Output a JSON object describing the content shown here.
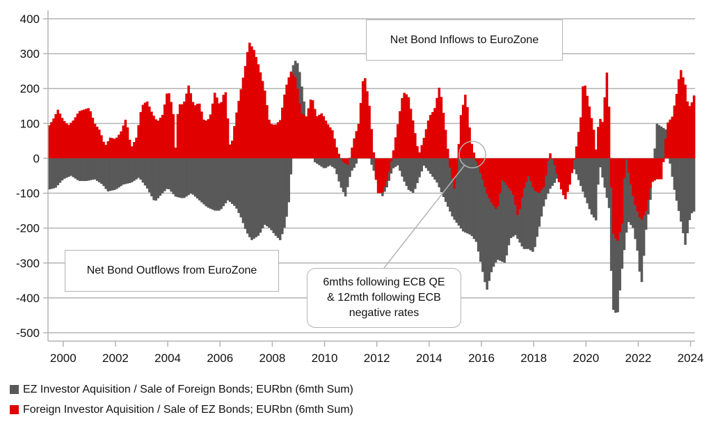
{
  "chart_data": {
    "type": "bar",
    "title": "",
    "xlabel": "",
    "ylabel": "",
    "ylim": [
      -500,
      400
    ],
    "yticks": [
      400,
      300,
      200,
      100,
      0,
      -100,
      -200,
      -300,
      -400,
      -500
    ],
    "xlim": [
      1999.42,
      2024.17
    ],
    "xticks": [
      2000,
      2002,
      2004,
      2006,
      2008,
      2010,
      2012,
      2014,
      2016,
      2018,
      2020,
      2022,
      2024
    ],
    "grid": "horizontal",
    "legend_position": "bottom-left",
    "frequency": "monthly",
    "start": 1999.42,
    "series": [
      {
        "name": "EZ Investor Aquisition / Sale of Foreign Bonds; EURbn (6mth Sum)",
        "color": "#595959",
        "anchors": [
          [
            1999.42,
            -90
          ],
          [
            1999.7,
            -85
          ],
          [
            2000.0,
            -60
          ],
          [
            2000.3,
            -50
          ],
          [
            2000.6,
            -65
          ],
          [
            2000.9,
            -65
          ],
          [
            2001.2,
            -60
          ],
          [
            2001.5,
            -75
          ],
          [
            2001.7,
            -95
          ],
          [
            2002.0,
            -90
          ],
          [
            2002.3,
            -75
          ],
          [
            2002.6,
            -70
          ],
          [
            2002.9,
            -55
          ],
          [
            2003.2,
            -85
          ],
          [
            2003.5,
            -125
          ],
          [
            2003.8,
            -100
          ],
          [
            2004.0,
            -85
          ],
          [
            2004.3,
            -110
          ],
          [
            2004.6,
            -115
          ],
          [
            2004.9,
            -100
          ],
          [
            2005.2,
            -120
          ],
          [
            2005.5,
            -140
          ],
          [
            2005.8,
            -150
          ],
          [
            2006.0,
            -150
          ],
          [
            2006.3,
            -120
          ],
          [
            2006.6,
            -140
          ],
          [
            2006.8,
            -170
          ],
          [
            2007.0,
            -210
          ],
          [
            2007.2,
            -235
          ],
          [
            2007.5,
            -220
          ],
          [
            2007.7,
            -190
          ],
          [
            2007.9,
            -200
          ],
          [
            2008.1,
            -220
          ],
          [
            2008.3,
            -235
          ],
          [
            2008.5,
            -190
          ],
          [
            2008.7,
            -90
          ],
          [
            2008.8,
            286
          ],
          [
            2009.0,
            270
          ],
          [
            2009.2,
            170
          ],
          [
            2009.4,
            50
          ],
          [
            2009.6,
            -10
          ],
          [
            2009.8,
            -20
          ],
          [
            2010.0,
            -30
          ],
          [
            2010.2,
            -20
          ],
          [
            2010.4,
            -30
          ],
          [
            2010.6,
            -80
          ],
          [
            2010.8,
            -110
          ],
          [
            2011.0,
            -40
          ],
          [
            2011.2,
            -20
          ],
          [
            2011.4,
            60
          ],
          [
            2011.6,
            40
          ],
          [
            2011.8,
            -20
          ],
          [
            2012.0,
            -60
          ],
          [
            2012.2,
            -110
          ],
          [
            2012.4,
            -80
          ],
          [
            2012.6,
            -30
          ],
          [
            2012.8,
            -20
          ],
          [
            2013.0,
            -60
          ],
          [
            2013.2,
            -90
          ],
          [
            2013.4,
            -100
          ],
          [
            2013.6,
            -60
          ],
          [
            2013.8,
            -20
          ],
          [
            2014.0,
            -40
          ],
          [
            2014.3,
            -70
          ],
          [
            2014.6,
            -120
          ],
          [
            2014.9,
            -170
          ],
          [
            2015.1,
            -190
          ],
          [
            2015.3,
            -210
          ],
          [
            2015.6,
            -220
          ],
          [
            2015.8,
            -240
          ],
          [
            2016.0,
            -310
          ],
          [
            2016.2,
            -380
          ],
          [
            2016.4,
            -320
          ],
          [
            2016.6,
            -290
          ],
          [
            2016.9,
            -300
          ],
          [
            2017.1,
            -230
          ],
          [
            2017.3,
            -220
          ],
          [
            2017.6,
            -260
          ],
          [
            2017.8,
            -260
          ],
          [
            2018.0,
            -270
          ],
          [
            2018.2,
            -200
          ],
          [
            2018.4,
            -130
          ],
          [
            2018.6,
            -90
          ],
          [
            2018.8,
            -70
          ],
          [
            2019.0,
            -40
          ],
          [
            2019.2,
            -10
          ],
          [
            2019.4,
            -10
          ],
          [
            2019.6,
            -40
          ],
          [
            2019.8,
            -80
          ],
          [
            2020.0,
            -120
          ],
          [
            2020.2,
            -160
          ],
          [
            2020.4,
            -180
          ],
          [
            2020.5,
            -10
          ],
          [
            2020.7,
            -80
          ],
          [
            2020.9,
            -150
          ],
          [
            2021.0,
            -430
          ],
          [
            2021.2,
            -450
          ],
          [
            2021.4,
            -300
          ],
          [
            2021.6,
            -180
          ],
          [
            2021.8,
            -200
          ],
          [
            2022.0,
            -280
          ],
          [
            2022.1,
            -380
          ],
          [
            2022.3,
            -200
          ],
          [
            2022.5,
            -100
          ],
          [
            2022.7,
            100
          ],
          [
            2022.9,
            90
          ],
          [
            2023.1,
            80
          ],
          [
            2023.2,
            -10
          ],
          [
            2023.4,
            -100
          ],
          [
            2023.6,
            -170
          ],
          [
            2023.8,
            -250
          ],
          [
            2024.0,
            -160
          ],
          [
            2024.17,
            -150
          ]
        ]
      },
      {
        "name": "Foreign Investor Aquisition / Sale of EZ Bonds; EURbn (6mth Sum)",
        "color": "#e00000",
        "anchors": [
          [
            1999.42,
            90
          ],
          [
            1999.6,
            110
          ],
          [
            1999.8,
            140
          ],
          [
            2000.0,
            110
          ],
          [
            2000.2,
            95
          ],
          [
            2000.4,
            110
          ],
          [
            2000.6,
            135
          ],
          [
            2000.8,
            140
          ],
          [
            2001.0,
            145
          ],
          [
            2001.2,
            100
          ],
          [
            2001.4,
            80
          ],
          [
            2001.6,
            35
          ],
          [
            2001.8,
            60
          ],
          [
            2002.0,
            55
          ],
          [
            2002.2,
            75
          ],
          [
            2002.4,
            115
          ],
          [
            2002.6,
            30
          ],
          [
            2002.8,
            60
          ],
          [
            2003.0,
            150
          ],
          [
            2003.2,
            165
          ],
          [
            2003.4,
            130
          ],
          [
            2003.6,
            105
          ],
          [
            2003.8,
            125
          ],
          [
            2004.0,
            200
          ],
          [
            2004.2,
            140
          ],
          [
            2004.3,
            25
          ],
          [
            2004.4,
            155
          ],
          [
            2004.6,
            155
          ],
          [
            2004.8,
            210
          ],
          [
            2005.0,
            150
          ],
          [
            2005.2,
            160
          ],
          [
            2005.4,
            105
          ],
          [
            2005.6,
            115
          ],
          [
            2005.8,
            190
          ],
          [
            2006.0,
            150
          ],
          [
            2006.2,
            200
          ],
          [
            2006.4,
            20
          ],
          [
            2006.6,
            120
          ],
          [
            2006.8,
            200
          ],
          [
            2007.0,
            280
          ],
          [
            2007.1,
            335
          ],
          [
            2007.3,
            310
          ],
          [
            2007.5,
            260
          ],
          [
            2007.7,
            200
          ],
          [
            2007.9,
            100
          ],
          [
            2008.1,
            95
          ],
          [
            2008.3,
            110
          ],
          [
            2008.5,
            200
          ],
          [
            2008.7,
            250
          ],
          [
            2008.9,
            230
          ],
          [
            2009.1,
            130
          ],
          [
            2009.3,
            120
          ],
          [
            2009.5,
            180
          ],
          [
            2009.7,
            120
          ],
          [
            2009.9,
            130
          ],
          [
            2010.1,
            100
          ],
          [
            2010.3,
            80
          ],
          [
            2010.5,
            20
          ],
          [
            2010.7,
            -10
          ],
          [
            2010.9,
            -20
          ],
          [
            2011.1,
            50
          ],
          [
            2011.3,
            100
          ],
          [
            2011.5,
            250
          ],
          [
            2011.7,
            160
          ],
          [
            2011.9,
            0
          ],
          [
            2012.0,
            -100
          ],
          [
            2012.2,
            -100
          ],
          [
            2012.4,
            -60
          ],
          [
            2012.6,
            10
          ],
          [
            2012.8,
            100
          ],
          [
            2013.0,
            190
          ],
          [
            2013.2,
            180
          ],
          [
            2013.4,
            100
          ],
          [
            2013.6,
            10
          ],
          [
            2013.8,
            60
          ],
          [
            2014.0,
            120
          ],
          [
            2014.2,
            140
          ],
          [
            2014.4,
            210
          ],
          [
            2014.6,
            100
          ],
          [
            2014.8,
            -30
          ],
          [
            2015.0,
            -100
          ],
          [
            2015.2,
            120
          ],
          [
            2015.4,
            190
          ],
          [
            2015.6,
            50
          ],
          [
            2015.8,
            -10
          ],
          [
            2016.0,
            -50
          ],
          [
            2016.2,
            -100
          ],
          [
            2016.4,
            -130
          ],
          [
            2016.6,
            -150
          ],
          [
            2016.8,
            -60
          ],
          [
            2017.0,
            -80
          ],
          [
            2017.2,
            -100
          ],
          [
            2017.4,
            -170
          ],
          [
            2017.6,
            -90
          ],
          [
            2017.8,
            -50
          ],
          [
            2018.0,
            -90
          ],
          [
            2018.2,
            -100
          ],
          [
            2018.4,
            -80
          ],
          [
            2018.6,
            20
          ],
          [
            2018.8,
            -20
          ],
          [
            2019.0,
            -80
          ],
          [
            2019.2,
            -120
          ],
          [
            2019.4,
            -70
          ],
          [
            2019.6,
            20
          ],
          [
            2019.8,
            120
          ],
          [
            2019.9,
            230
          ],
          [
            2020.1,
            160
          ],
          [
            2020.3,
            80
          ],
          [
            2020.4,
            10
          ],
          [
            2020.5,
            140
          ],
          [
            2020.6,
            80
          ],
          [
            2020.8,
            250
          ],
          [
            2020.9,
            120
          ],
          [
            2021.0,
            -210
          ],
          [
            2021.2,
            -240
          ],
          [
            2021.4,
            -180
          ],
          [
            2021.5,
            20
          ],
          [
            2021.6,
            -30
          ],
          [
            2021.8,
            -110
          ],
          [
            2021.9,
            -140
          ],
          [
            2022.1,
            -180
          ],
          [
            2022.3,
            -150
          ],
          [
            2022.5,
            -70
          ],
          [
            2022.7,
            -60
          ],
          [
            2022.9,
            -60
          ],
          [
            2023.1,
            100
          ],
          [
            2023.3,
            120
          ],
          [
            2023.5,
            200
          ],
          [
            2023.6,
            260
          ],
          [
            2023.8,
            210
          ],
          [
            2023.9,
            150
          ],
          [
            2024.0,
            150
          ],
          [
            2024.17,
            190
          ]
        ]
      }
    ],
    "annotations": [
      {
        "id": "inflows",
        "text": "Net Bond Inflows to EuroZone"
      },
      {
        "id": "outflows",
        "text": "Net Bond Outflows from EuroZone"
      },
      {
        "id": "callout",
        "lines": [
          "6mths following ECB QE",
          "& 12mth following ECB",
          "negative rates"
        ],
        "points_to": {
          "x": 2015.7,
          "y": 0
        }
      }
    ]
  },
  "legend": {
    "items": [
      {
        "label": "EZ Investor Aquisition / Sale of Foreign Bonds; EURbn (6mth Sum)",
        "color": "#595959"
      },
      {
        "label": "Foreign Investor Aquisition / Sale of EZ Bonds; EURbn (6mth Sum)",
        "color": "#e00000"
      }
    ]
  },
  "annotations_text": {
    "inflows": "Net Bond Inflows to EuroZone",
    "outflows": "Net Bond Outflows from EuroZone",
    "callout_1": "6mths following ECB QE",
    "callout_2": "& 12mth following ECB",
    "callout_3": "negative rates"
  }
}
